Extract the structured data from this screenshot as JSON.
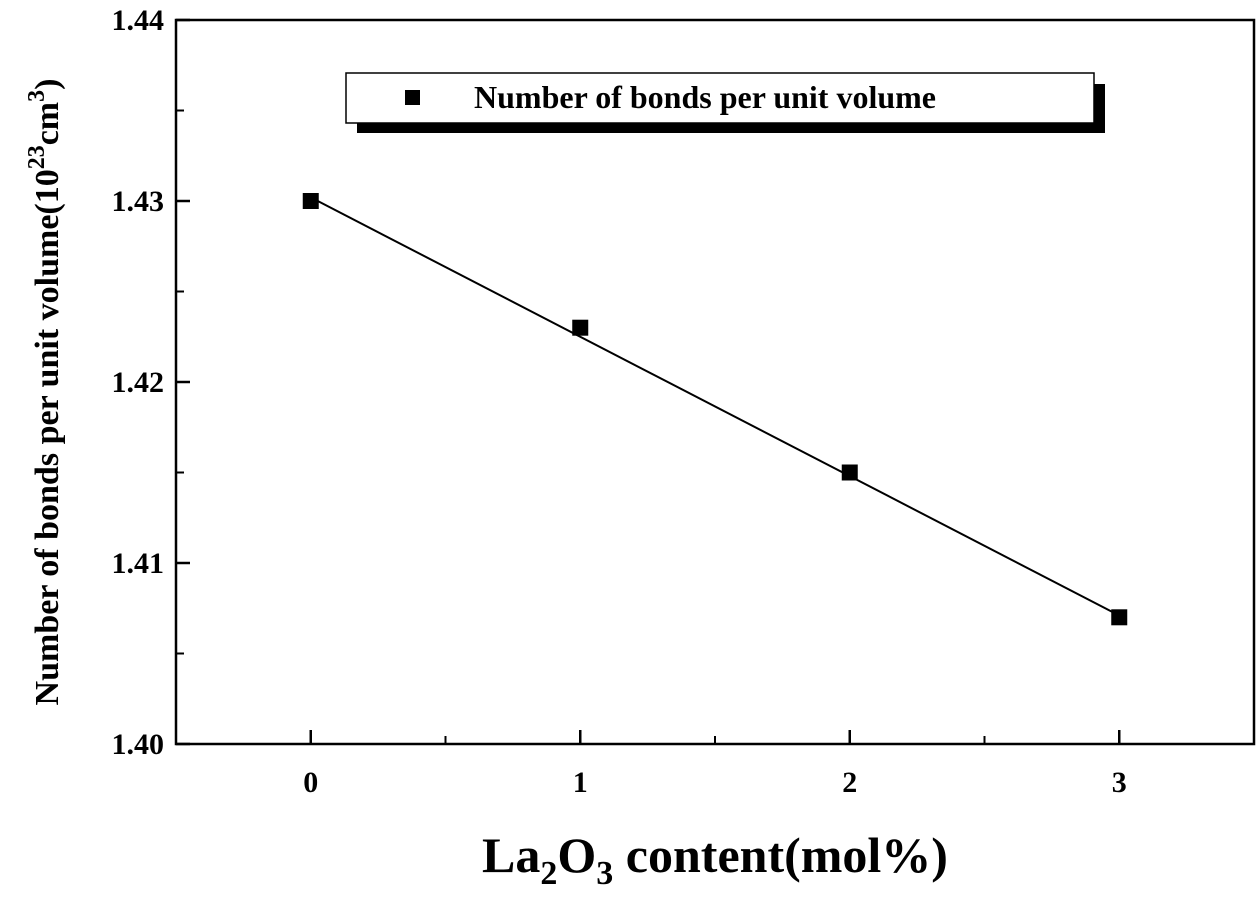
{
  "chart_data": {
    "type": "scatter",
    "title": "",
    "xlabel": {
      "pre": "La",
      "sub1": "2",
      "mid": "O",
      "sub2": "3",
      "post": " content(mol%)"
    },
    "ylabel": {
      "main": "Number of bonds per unit volume(10",
      "sup1": "23",
      "mid": "cm",
      "sup2": "3",
      "close": ")"
    },
    "xlim": [
      -0.5,
      3.5
    ],
    "ylim": [
      1.4,
      1.44
    ],
    "x_ticks": [
      0,
      1,
      2,
      3
    ],
    "x_tick_labels": [
      "0",
      "1",
      "2",
      "3"
    ],
    "y_ticks": [
      1.4,
      1.41,
      1.42,
      1.43,
      1.44
    ],
    "y_tick_labels": [
      "1.40",
      "1.41",
      "1.42",
      "1.43",
      "1.44"
    ],
    "y_minor_ticks": [
      1.405,
      1.415,
      1.425,
      1.435
    ],
    "x_minor_ticks": [
      -0.5,
      0.5,
      1.5,
      2.5,
      3.5
    ],
    "grid": false,
    "legend_position": "top",
    "series": [
      {
        "name": "Number of bonds per unit volume",
        "marker": "square",
        "color": "#000000",
        "x": [
          0,
          1,
          2,
          3
        ],
        "y": [
          1.43,
          1.423,
          1.415,
          1.407
        ]
      }
    ],
    "fit_line": {
      "x": [
        0,
        3
      ],
      "y": [
        1.4302,
        1.4071
      ],
      "color": "#000000"
    }
  }
}
